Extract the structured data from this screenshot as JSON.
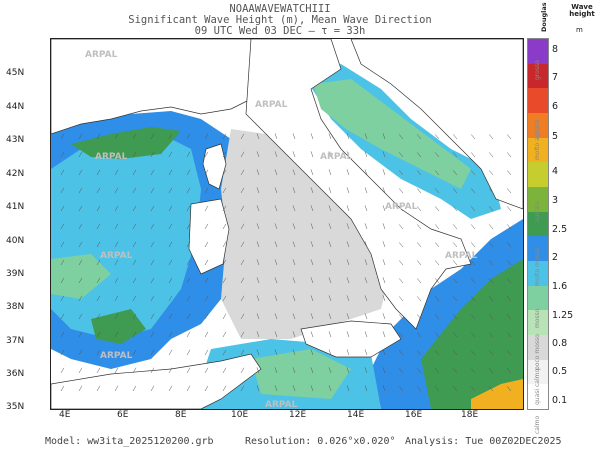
{
  "header": {
    "line1": "NOAAWAVEWATCHIII",
    "line2": "Significant Wave Height (m), Mean Wave Direction",
    "line3": "09 UTC Wed 03 DEC   —  τ = 33h"
  },
  "axes": {
    "lat_labels": [
      "45N",
      "44N",
      "43N",
      "42N",
      "41N",
      "40N",
      "39N",
      "38N",
      "37N",
      "36N",
      "35N"
    ],
    "lon_labels": [
      "4E",
      "6E",
      "8E",
      "10E",
      "12E",
      "14E",
      "16E",
      "18E"
    ]
  },
  "watermark": "ARPAL",
  "legend": {
    "scale_title": "Douglas",
    "title": "Wave height",
    "unit": "m",
    "values": [
      "0.1",
      "0.5",
      "0.8",
      "1.25",
      "1.6",
      "2",
      "2.5",
      "3",
      "4",
      "5",
      "6",
      "7",
      "8"
    ],
    "descriptions": [
      "calmo",
      "quasi calmo",
      "poco mosso",
      "mosso",
      "molto mosso",
      "agitato",
      "molto agitato",
      "grosso"
    ],
    "colors": [
      "#ffffff",
      "#f2f2f2",
      "#d9d9d9",
      "#b7e3b7",
      "#7fd0a0",
      "#4cc3e6",
      "#2f8ee8",
      "#3f9a52",
      "#7bb33b",
      "#c6cd2e",
      "#f0b020",
      "#f07d22",
      "#e84a2a",
      "#c8282c",
      "#8a3cc8"
    ]
  },
  "footer": {
    "model": "Model: ww3ita_2025120200.grb",
    "resolution": "Resolution: 0.026°x0.020°",
    "analysis": "Analysis: Tue 00Z02DEC2025"
  }
}
